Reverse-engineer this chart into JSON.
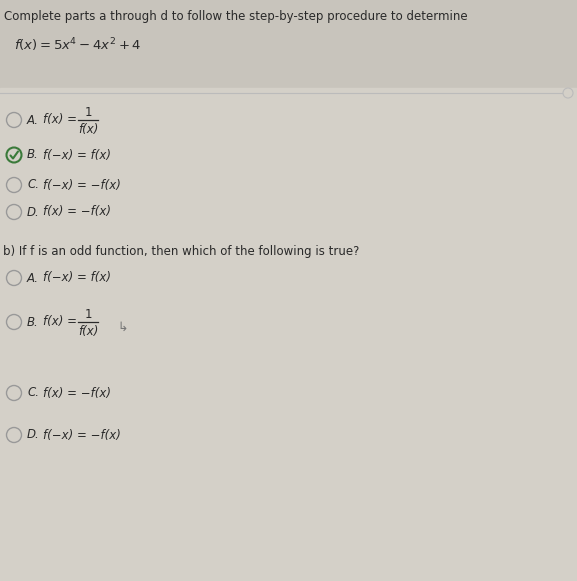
{
  "bg_color_top": "#c8c4bc",
  "bg_color_main": "#d4d0c8",
  "title_text": "Complete parts a through d to follow the step-by-step procedure to determine",
  "title_fontsize": 8.5,
  "func_fontsize": 9.5,
  "option_fontsize": 8.5,
  "question_fontsize": 8.5,
  "text_color": "#2a2a2a",
  "circle_color": "#999999",
  "check_color": "#3a7a3a",
  "line_color": "#bbbbbb",
  "section_a_options": [
    {
      "label": "A.",
      "main": "f(x) = ",
      "frac_num": "1",
      "frac_den": "f(x)",
      "is_fraction": true,
      "selected": false
    },
    {
      "label": "B.",
      "main": "f(−x) = f(x)",
      "is_fraction": false,
      "selected": true
    },
    {
      "label": "C.",
      "main": "f(−x) = −f(x)",
      "is_fraction": false,
      "selected": false
    },
    {
      "label": "D.",
      "main": "f(x) = −f(x)",
      "is_fraction": false,
      "selected": false
    }
  ],
  "section_b_question": "b) If f is an odd function, then which of the following is true?",
  "section_b_options": [
    {
      "label": "A.",
      "main": "f(−x) = f(x)",
      "is_fraction": false,
      "selected": false
    },
    {
      "label": "B.",
      "main": "f(x) = ",
      "frac_num": "1",
      "frac_den": "f(x)",
      "is_fraction": true,
      "selected": false
    },
    {
      "label": "C.",
      "main": "f(x) = −f(x)",
      "is_fraction": false,
      "selected": false
    },
    {
      "label": "D.",
      "main": "f(−x) = −f(x)",
      "is_fraction": false,
      "selected": false
    }
  ]
}
